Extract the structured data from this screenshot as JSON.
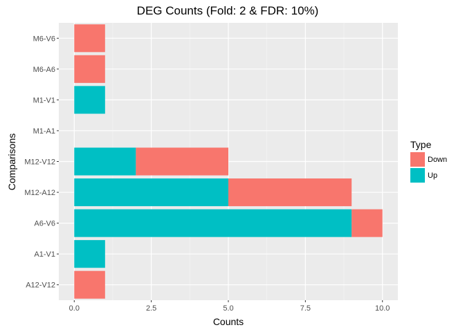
{
  "chart_data": {
    "type": "bar",
    "orientation": "horizontal",
    "stacked": true,
    "title": "DEG Counts (Fold: 2 & FDR: 10%)",
    "xlabel": "Counts",
    "ylabel": "Comparisons",
    "xlim": [
      0,
      10
    ],
    "x_ticks": [
      "0.0",
      "2.5",
      "5.0",
      "7.5",
      "10.0"
    ],
    "categories": [
      "A12-V12",
      "A1-V1",
      "A6-V6",
      "M12-A12",
      "M12-V12",
      "M1-A1",
      "M1-V1",
      "M6-A6",
      "M6-V6"
    ],
    "series": [
      {
        "name": "Up",
        "color": "#00BFC4",
        "values": [
          0,
          1,
          9,
          5,
          2,
          0,
          1,
          0,
          0
        ]
      },
      {
        "name": "Down",
        "color": "#F8766D",
        "values": [
          1,
          0,
          1,
          4,
          3,
          0,
          0,
          1,
          1
        ]
      }
    ],
    "grid": true,
    "panel_background": "#EBEBEB",
    "legend": {
      "title": "Type",
      "placement": "right",
      "entries": [
        {
          "label": "Down",
          "color": "#F8766D"
        },
        {
          "label": "Up",
          "color": "#00BFC4"
        }
      ]
    }
  }
}
